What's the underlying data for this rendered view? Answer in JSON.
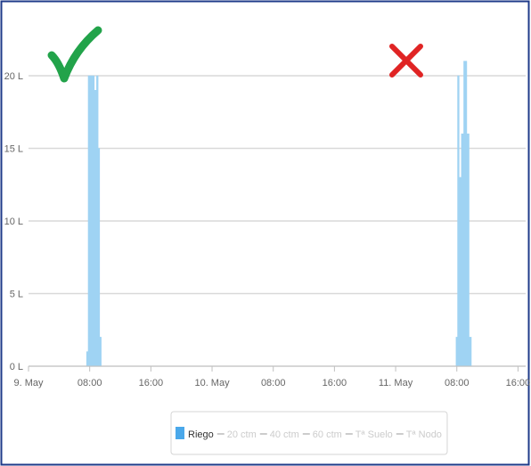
{
  "chart_data": {
    "type": "area",
    "title": "",
    "xlabel": "",
    "ylabel": "",
    "ylim": [
      0,
      20
    ],
    "y_ticks": [
      "0 L",
      "5 L",
      "10 L",
      "15 L",
      "20 L"
    ],
    "y_tick_values": [
      0,
      5,
      10,
      15,
      20
    ],
    "x_ticks": [
      "9. May",
      "08:00",
      "16:00",
      "10. May",
      "08:00",
      "16:00",
      "11. May",
      "08:00",
      "16:00"
    ],
    "x_tick_hours": [
      0,
      8,
      16,
      24,
      32,
      40,
      48,
      56,
      64
    ],
    "x_range_hours": [
      0,
      65
    ],
    "grid": "horizontal",
    "legend_position": "bottom-center",
    "series": [
      {
        "name": "Riego",
        "color": "#9fd3f3",
        "visible": true,
        "points": [
          [
            7.6,
            0
          ],
          [
            7.6,
            1
          ],
          [
            7.8,
            1
          ],
          [
            7.8,
            20
          ],
          [
            8.6,
            20
          ],
          [
            8.6,
            19
          ],
          [
            8.9,
            19
          ],
          [
            8.9,
            20
          ],
          [
            9.1,
            20
          ],
          [
            9.1,
            15
          ],
          [
            9.3,
            15
          ],
          [
            9.3,
            2
          ],
          [
            9.5,
            2
          ],
          [
            9.5,
            0
          ],
          [
            55.9,
            0
          ],
          [
            55.9,
            2
          ],
          [
            56.1,
            2
          ],
          [
            56.1,
            20
          ],
          [
            56.3,
            20
          ],
          [
            56.3,
            13
          ],
          [
            56.6,
            13
          ],
          [
            56.6,
            16
          ],
          [
            56.9,
            16
          ],
          [
            56.9,
            21
          ],
          [
            57.3,
            21
          ],
          [
            57.3,
            16
          ],
          [
            57.6,
            16
          ],
          [
            57.6,
            2
          ],
          [
            57.9,
            2
          ],
          [
            57.9,
            0
          ]
        ]
      },
      {
        "name": "20 ctm",
        "visible": false
      },
      {
        "name": "40 ctm",
        "visible": false
      },
      {
        "name": "60 ctm",
        "visible": false
      },
      {
        "name": "Tª Suelo",
        "visible": false
      },
      {
        "name": "Tª Nodo",
        "visible": false
      }
    ],
    "annotations": [
      {
        "symbol": "✓",
        "meaning": "check-mark",
        "color": "#22a34a",
        "near_hour": 5
      },
      {
        "symbol": "✕",
        "meaning": "cross-mark",
        "color": "#e02424",
        "near_hour": 50
      }
    ],
    "colors": {
      "grid": "#d9d9d9",
      "axis": "#c0c0c0",
      "border": "#1f3b8a",
      "legend_active": "#333333",
      "legend_hidden": "#cccccc",
      "legend_icon": "#4aa8ea"
    }
  }
}
